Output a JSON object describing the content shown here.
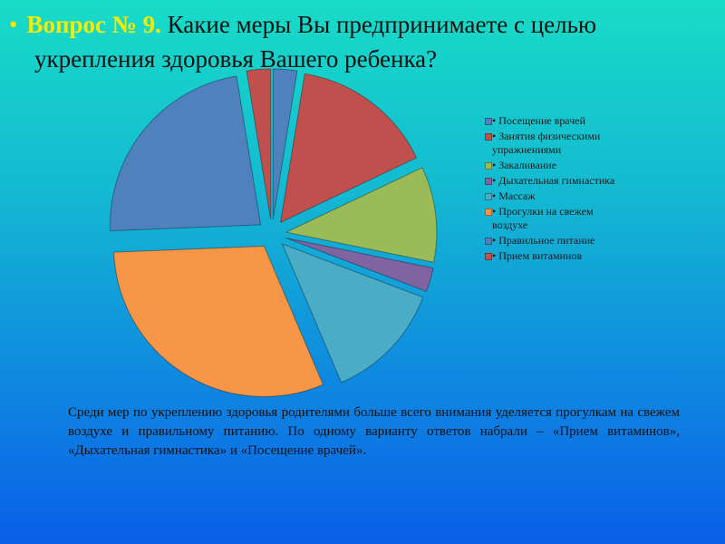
{
  "slide": {
    "bullet": "•",
    "number_label": "Вопрос № 9.",
    "question_line1": "Какие меры Вы предпринимаете с целью",
    "question_line2": "укрепления здоровья Вашего ребенка?",
    "conclusion": "Среди мер по укреплению здоровья родителями больше всего внимания уделяется прогулкам на свежем воздухе и правильному питанию. По одному варианту ответов набрали – «Прием витаминов», «Дыхательная гимнастика» и «Посещение врачей»."
  },
  "chart_data": {
    "type": "pie",
    "title": "",
    "legend_position": "right",
    "exploded": true,
    "slices": [
      {
        "label": "Посещение врачей",
        "value": 1,
        "color": "#4f81bd"
      },
      {
        "label": "Занятия физическими упражнениями",
        "value": 6,
        "color": "#c0504d"
      },
      {
        "label": "Закаливание",
        "value": 4,
        "color": "#9bbb59"
      },
      {
        "label": "Дыхательная гимнастика",
        "value": 1,
        "color": "#8064a2"
      },
      {
        "label": "Массаж",
        "value": 5,
        "color": "#4bacc6"
      },
      {
        "label": "Прогулки на свежем воздухе",
        "value": 12,
        "color": "#f79646"
      },
      {
        "label": "Правильное питание",
        "value": 9,
        "color": "#4f81bd"
      },
      {
        "label": "Прием витаминов",
        "value": 1,
        "color": "#c0504d"
      }
    ],
    "legend_labels": [
      {
        "l1": "Посещение врачей",
        "l2": ""
      },
      {
        "l1": "Занятия физическими",
        "l2": "упражнениями"
      },
      {
        "l1": "Закаливание",
        "l2": ""
      },
      {
        "l1": "Дыхательная гимнастика",
        "l2": ""
      },
      {
        "l1": "Массаж",
        "l2": ""
      },
      {
        "l1": "Прогулки на свежем",
        "l2": "воздухе"
      },
      {
        "l1": "Правильное питание",
        "l2": ""
      },
      {
        "l1": "Прием витаминов",
        "l2": ""
      }
    ]
  }
}
